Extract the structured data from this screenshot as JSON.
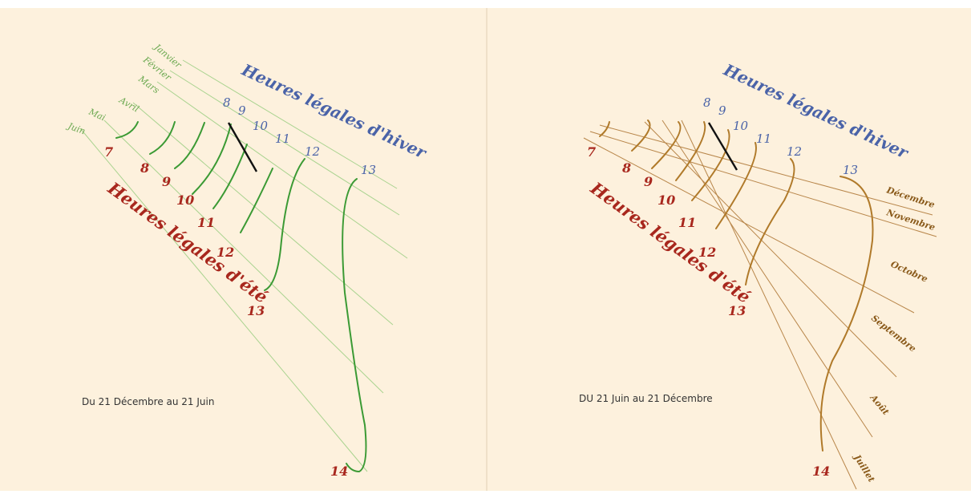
{
  "left": {
    "caption": "Du 21 Décembre au 21 Juin",
    "winter_title": "Heures légales d'hiver",
    "summer_title": "Heures légales d'été",
    "month_labels": [
      "Janvier",
      "Février",
      "Mars",
      "Avril",
      "Mai",
      "Juin"
    ],
    "winter_hours": [
      "8",
      "9",
      "10",
      "11",
      "12",
      "13"
    ],
    "summer_hours": [
      "7",
      "8",
      "9",
      "10",
      "11",
      "12",
      "13",
      "14"
    ]
  },
  "right": {
    "caption": "DU 21 Juin au 21 Décembre",
    "winter_title": "Heures légales d'hiver",
    "summer_title": "Heures légales d'été",
    "month_labels": [
      "Décembre",
      "Novembre",
      "Octobre",
      "Septembre",
      "Août",
      "Juillet"
    ],
    "winter_hours": [
      "8",
      "9",
      "10",
      "11",
      "12",
      "13"
    ],
    "summer_hours": [
      "7",
      "8",
      "9",
      "10",
      "11",
      "12",
      "13",
      "14"
    ]
  },
  "colors": {
    "background": "#fdf1dd",
    "winter_text": "#4a63a8",
    "summer_text": "#a8271d",
    "left_curves": "#3b9a34",
    "left_lines": "#a9d38f",
    "left_months": "#6aa84f",
    "right_curves": "#b07a2a",
    "right_lines": "#b8864a",
    "right_months": "#8a5a1a",
    "gnomon": "#111111"
  }
}
